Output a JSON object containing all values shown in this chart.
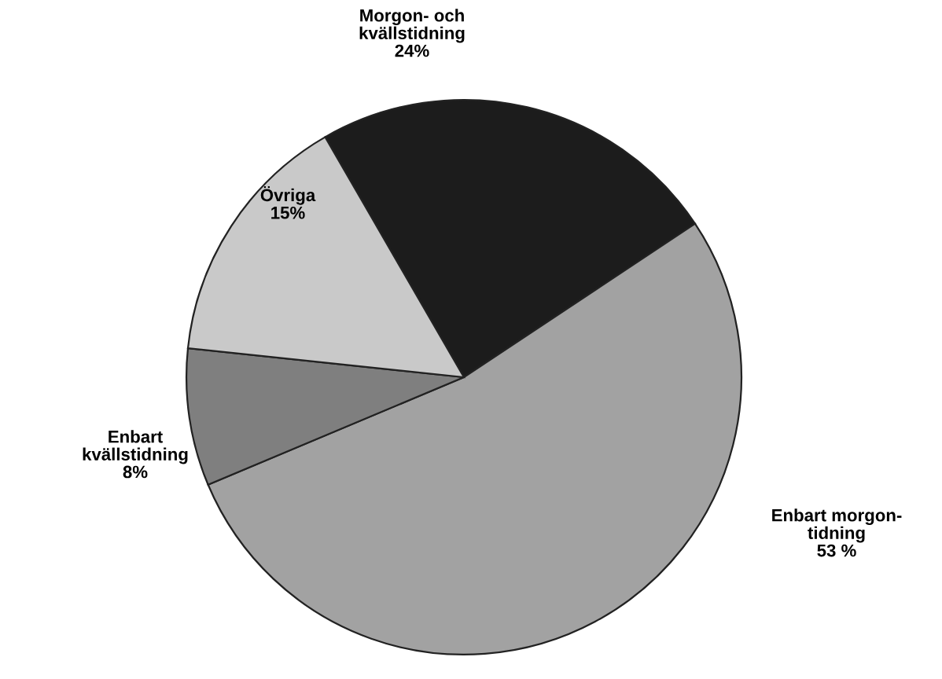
{
  "chart_data": {
    "type": "pie",
    "categories": [
      "Morgon- och\nkvällstidning",
      "Enbart morgon-\ntidning",
      "Enbart\nkvällstidning",
      "Övriga"
    ],
    "values": [
      24,
      53,
      8,
      15
    ],
    "value_labels": [
      "24%",
      "53 %",
      "8%",
      "15%"
    ],
    "colors": [
      "#1c1c1c",
      "#a2a2a2",
      "#7f7f7f",
      "#c9c9c9"
    ],
    "legend": false
  }
}
